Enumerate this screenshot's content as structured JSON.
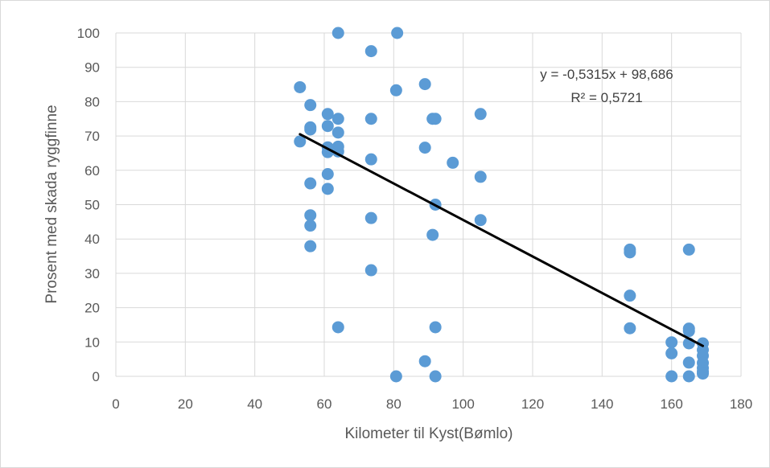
{
  "chart_data": {
    "type": "scatter",
    "xlabel": "Kilometer til Kyst(Bømlo)",
    "ylabel": "Prosent med skada ryggfinne",
    "xlim": [
      0,
      180
    ],
    "ylim": [
      0,
      100
    ],
    "xticks": [
      0,
      20,
      40,
      60,
      80,
      100,
      120,
      140,
      160,
      180
    ],
    "yticks": [
      0,
      10,
      20,
      30,
      40,
      50,
      60,
      70,
      80,
      90,
      100
    ],
    "grid": true,
    "point_color": "#5b9bd5",
    "trendline_color": "#000000",
    "trendline": {
      "type": "linear",
      "slope": -0.5315,
      "intercept": 98.686,
      "x_range": [
        53,
        169
      ],
      "equation_label": "y = -0,5315x + 98,686",
      "r2_label": "R² = 0,5721"
    },
    "points": [
      {
        "x": 64,
        "y": 100
      },
      {
        "x": 81,
        "y": 100
      },
      {
        "x": 73.5,
        "y": 94.7
      },
      {
        "x": 53,
        "y": 84.2
      },
      {
        "x": 89,
        "y": 85.1
      },
      {
        "x": 80.7,
        "y": 83.3
      },
      {
        "x": 56,
        "y": 79
      },
      {
        "x": 61,
        "y": 76.4
      },
      {
        "x": 64,
        "y": 75
      },
      {
        "x": 73.5,
        "y": 75
      },
      {
        "x": 91.2,
        "y": 75
      },
      {
        "x": 92,
        "y": 75
      },
      {
        "x": 105,
        "y": 76.4
      },
      {
        "x": 56,
        "y": 72.5
      },
      {
        "x": 56,
        "y": 71.9
      },
      {
        "x": 61,
        "y": 72.9
      },
      {
        "x": 64,
        "y": 71
      },
      {
        "x": 53,
        "y": 68.4
      },
      {
        "x": 61,
        "y": 66.7
      },
      {
        "x": 64,
        "y": 66.9
      },
      {
        "x": 61,
        "y": 65.3
      },
      {
        "x": 64,
        "y": 65.5
      },
      {
        "x": 89,
        "y": 66.6
      },
      {
        "x": 73.5,
        "y": 63.2
      },
      {
        "x": 97,
        "y": 62.2
      },
      {
        "x": 61,
        "y": 58.9
      },
      {
        "x": 105,
        "y": 58.1
      },
      {
        "x": 56,
        "y": 56.2
      },
      {
        "x": 61,
        "y": 54.6
      },
      {
        "x": 92,
        "y": 50
      },
      {
        "x": 56,
        "y": 46.9
      },
      {
        "x": 73.5,
        "y": 46.1
      },
      {
        "x": 105,
        "y": 45.5
      },
      {
        "x": 56,
        "y": 43.9
      },
      {
        "x": 91.2,
        "y": 41.2
      },
      {
        "x": 56,
        "y": 37.9
      },
      {
        "x": 148,
        "y": 36.9
      },
      {
        "x": 148,
        "y": 36.1
      },
      {
        "x": 165,
        "y": 36.9
      },
      {
        "x": 73.5,
        "y": 30.9
      },
      {
        "x": 148,
        "y": 23.5
      },
      {
        "x": 64,
        "y": 14.3
      },
      {
        "x": 92,
        "y": 14.3
      },
      {
        "x": 148,
        "y": 14
      },
      {
        "x": 165,
        "y": 13.9
      },
      {
        "x": 165,
        "y": 13.2
      },
      {
        "x": 160,
        "y": 9.9
      },
      {
        "x": 165,
        "y": 9.6
      },
      {
        "x": 169,
        "y": 9.6
      },
      {
        "x": 169,
        "y": 7.7
      },
      {
        "x": 160,
        "y": 6.7
      },
      {
        "x": 169,
        "y": 6
      },
      {
        "x": 89,
        "y": 4.4
      },
      {
        "x": 165,
        "y": 4
      },
      {
        "x": 169,
        "y": 3.9
      },
      {
        "x": 169,
        "y": 2.4
      },
      {
        "x": 169,
        "y": 1.4
      },
      {
        "x": 169,
        "y": 0.8
      },
      {
        "x": 80.7,
        "y": 0
      },
      {
        "x": 92,
        "y": 0
      },
      {
        "x": 160,
        "y": 0
      },
      {
        "x": 165,
        "y": 0
      }
    ]
  }
}
